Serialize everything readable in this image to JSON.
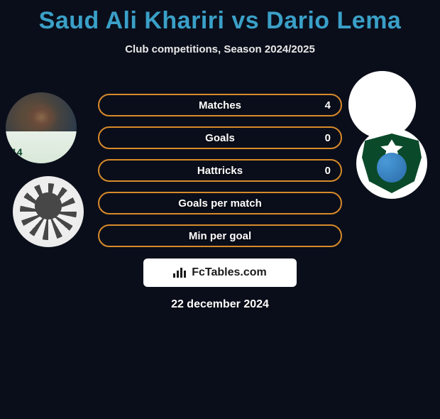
{
  "title": "Saud Ali Khariri vs Dario Lema",
  "subtitle": "Club competitions, Season 2024/2025",
  "date": "22 december 2024",
  "branding": "FcTables.com",
  "colors": {
    "title_accent": "#3aa0c8",
    "stat_border": "#d88a2a",
    "stat_fill": "#0a0e1a",
    "badge_bg": "#ffffff",
    "shield_green": "#0a4a2a"
  },
  "player_left": {
    "jersey": "14"
  },
  "stats": [
    {
      "label": "Matches",
      "value": "4"
    },
    {
      "label": "Goals",
      "value": "0"
    },
    {
      "label": "Hattricks",
      "value": "0"
    },
    {
      "label": "Goals per match",
      "value": ""
    },
    {
      "label": "Min per goal",
      "value": ""
    }
  ]
}
